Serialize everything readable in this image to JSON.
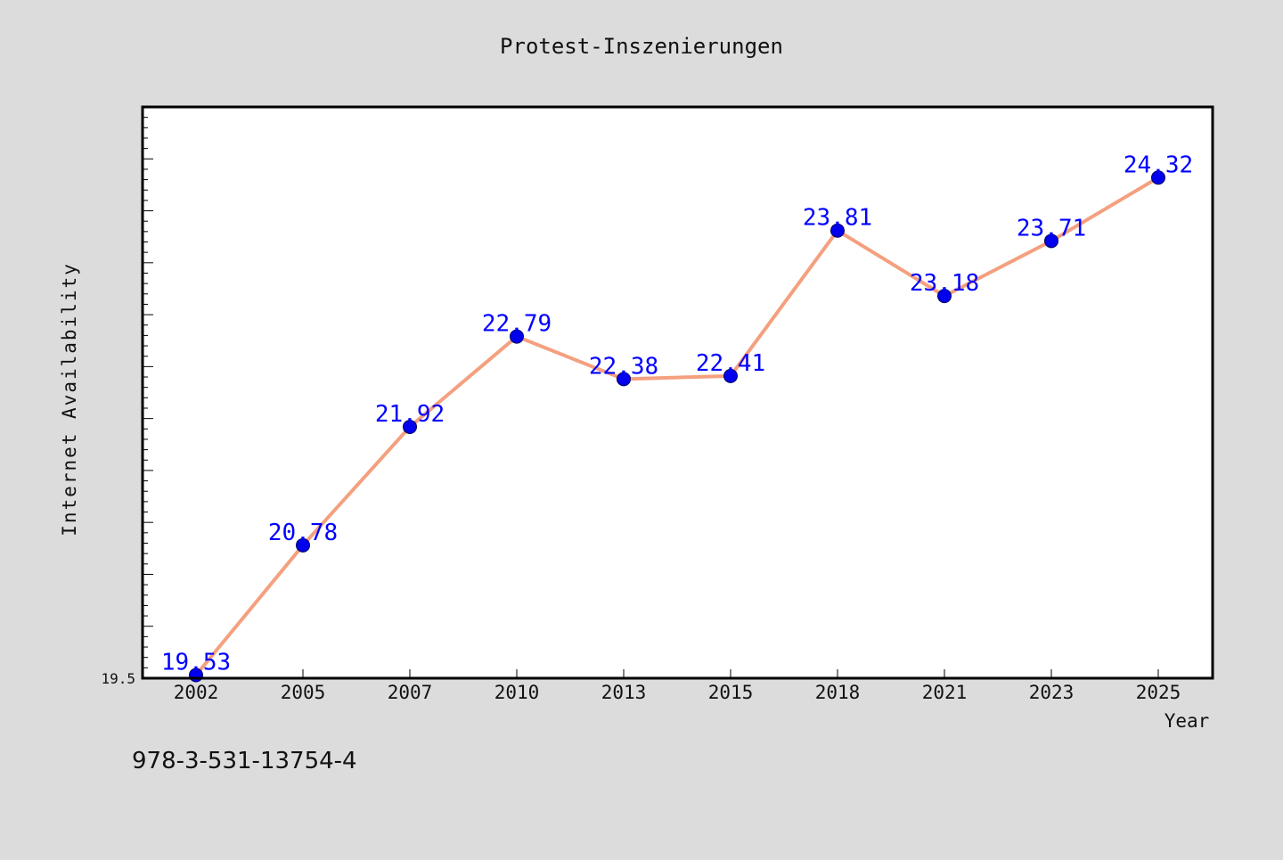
{
  "page": {
    "background": "#dcdcdc",
    "plot_background": "#ffffff",
    "footer_text": "978-3-531-13754-4"
  },
  "chart_data": {
    "type": "line",
    "title": "Protest-Inszenierungen",
    "xlabel": "Year",
    "ylabel": "Internet Availability",
    "categories": [
      "2002",
      "2005",
      "2007",
      "2010",
      "2013",
      "2015",
      "2018",
      "2021",
      "2023",
      "2025"
    ],
    "series": [
      {
        "values": [
          19.53,
          20.78,
          21.92,
          22.79,
          22.38,
          22.41,
          23.81,
          23.18,
          23.71,
          24.32
        ],
        "line_color": "#f4a07f",
        "marker_color": "#0000ee",
        "label_color": "#0000ff"
      }
    ],
    "data_labels": [
      "19.53",
      "20.78",
      "21.92",
      "22.79",
      "22.38",
      "22.41",
      "23.81",
      "23.18",
      "23.71",
      "24.32"
    ],
    "ylim": [
      19.5,
      25.0
    ],
    "y_tick_labels": [
      "19.5"
    ],
    "grid": false,
    "legend": "none"
  }
}
